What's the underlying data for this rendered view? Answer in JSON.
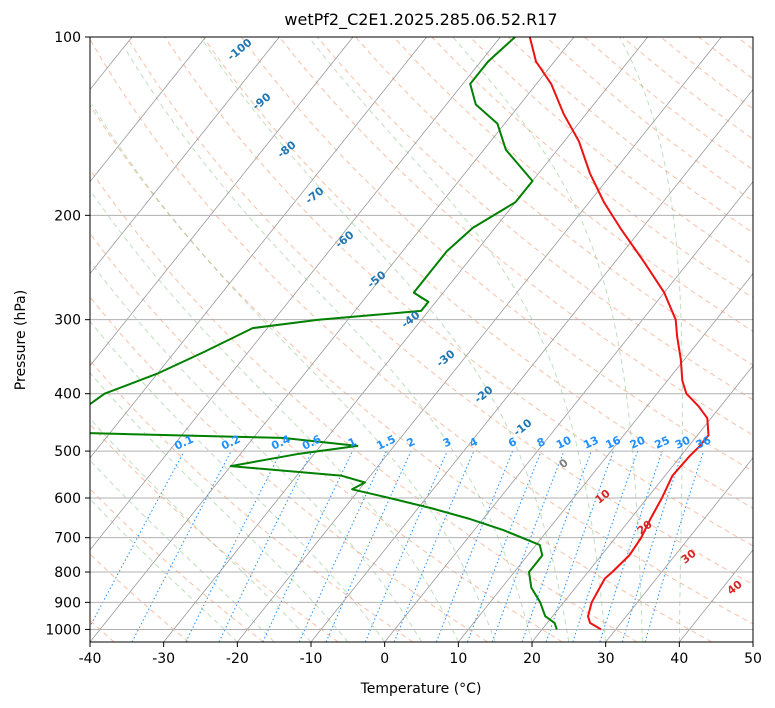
{
  "chart_data": {
    "type": "line",
    "title": "wetPf2_C2E1.2025.285.06.52.R17",
    "xlabel": "Temperature (°C)",
    "ylabel": "Pressure (hPa)",
    "xlim": [
      -40,
      50
    ],
    "ylim": [
      1050,
      100
    ],
    "y_scale": "log",
    "skew": "skew-T log-p",
    "grid": true,
    "x_ticks": [
      -40,
      -30,
      -20,
      -10,
      0,
      10,
      20,
      30,
      40,
      50
    ],
    "y_ticks": [
      1000,
      900,
      800,
      700,
      600,
      500,
      400,
      300,
      200,
      100
    ],
    "series": [
      {
        "role": "temperature",
        "color": "#ee1111",
        "points": [
          [
            28.0,
            1000
          ],
          [
            25.8,
            975
          ],
          [
            24.8,
            950
          ],
          [
            23.8,
            900
          ],
          [
            23.3,
            850
          ],
          [
            23.0,
            820
          ],
          [
            23.3,
            800
          ],
          [
            23.8,
            750
          ],
          [
            23.5,
            700
          ],
          [
            22.7,
            650
          ],
          [
            22.0,
            600
          ],
          [
            21.0,
            550
          ],
          [
            21.2,
            510
          ],
          [
            21.5,
            490
          ],
          [
            21.5,
            470
          ],
          [
            19.5,
            440
          ],
          [
            17.0,
            420
          ],
          [
            14.0,
            400
          ],
          [
            12.0,
            380
          ],
          [
            9.5,
            350
          ],
          [
            6.5,
            320
          ],
          [
            4.5,
            300
          ],
          [
            0.0,
            270
          ],
          [
            -6.0,
            240
          ],
          [
            -13.0,
            210
          ],
          [
            -18.0,
            190
          ],
          [
            -23.0,
            170
          ],
          [
            -28.0,
            150
          ],
          [
            -33.0,
            135
          ],
          [
            -38.0,
            120
          ],
          [
            -42.5,
            110
          ],
          [
            -46.0,
            100
          ]
        ]
      },
      {
        "role": "dewpoint",
        "color": "#008000",
        "points": [
          [
            22.0,
            1000
          ],
          [
            21.0,
            975
          ],
          [
            19.0,
            950
          ],
          [
            16.8,
            900
          ],
          [
            14.0,
            850
          ],
          [
            12.0,
            800
          ],
          [
            12.0,
            780
          ],
          [
            12.0,
            750
          ],
          [
            10.5,
            720
          ],
          [
            4.0,
            680
          ],
          [
            -2.0,
            650
          ],
          [
            -8.0,
            625
          ],
          [
            -15.0,
            600
          ],
          [
            -21.0,
            580
          ],
          [
            -20.0,
            565
          ],
          [
            -24.0,
            550
          ],
          [
            -40.0,
            530
          ],
          [
            -32.0,
            505
          ],
          [
            -25.0,
            490
          ],
          [
            -36.0,
            475
          ],
          [
            -67.0,
            465
          ],
          [
            -68.0,
            440
          ],
          [
            -66.0,
            420
          ],
          [
            -65.0,
            400
          ],
          [
            -60.0,
            370
          ],
          [
            -56.0,
            340
          ],
          [
            -52.0,
            310
          ],
          [
            -44.0,
            300
          ],
          [
            -31.0,
            290
          ],
          [
            -31.0,
            280
          ],
          [
            -34.0,
            270
          ],
          [
            -34.0,
            250
          ],
          [
            -34.0,
            230
          ],
          [
            -33.0,
            210
          ],
          [
            -30.0,
            190
          ],
          [
            -30.0,
            175
          ],
          [
            -37.0,
            155
          ],
          [
            -41.0,
            140
          ],
          [
            -46.0,
            130
          ],
          [
            -49.0,
            120
          ],
          [
            -49.0,
            110
          ],
          [
            -48.0,
            100
          ]
        ]
      }
    ],
    "isotherm_labels": [
      "-100",
      "-90",
      "-80",
      "-70",
      "-60",
      "-50",
      "-40",
      "-30",
      "-20",
      "-10",
      "0",
      "10",
      "20",
      "30",
      "40"
    ],
    "mixing_ratio_labels": [
      "0.1",
      "0.2",
      "0.4",
      "0.6",
      "1",
      "1.5",
      "2",
      "3",
      "4",
      "6",
      "8",
      "10",
      "13",
      "16",
      "20",
      "25",
      "30",
      "36"
    ],
    "isotherm_label_color_cold": "#1f77b4",
    "isotherm_label_color_zero": "#808080",
    "isotherm_label_color_warm": "#d62728",
    "mixing_ratio_label_color": "#1e90ff"
  }
}
